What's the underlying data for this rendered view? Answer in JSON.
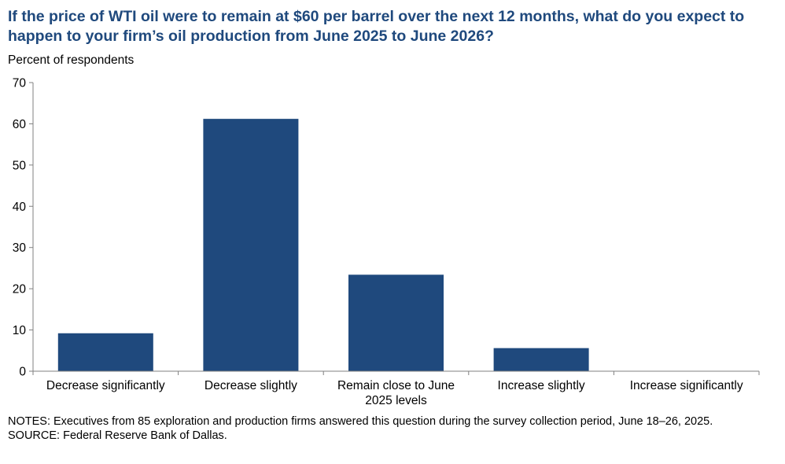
{
  "title": "If the price of WTI oil were to remain at $60 per barrel over the next 12 months, what do you expect to happen to your firm’s oil production from June 2025 to June 2026?",
  "notes": "NOTES:  Executives from 85 exploration and production firms answered this question during the survey collection period, June 18–26, 2025.",
  "source": "SOURCE:  Federal Reserve Bank of Dallas.",
  "colors": {
    "bar": "#1f497d",
    "title": "#1f497d",
    "axis": "#808080"
  },
  "chart_data": {
    "type": "bar",
    "ylabel": "Percent of respondents",
    "categories": [
      [
        "Decrease significantly"
      ],
      [
        "Decrease slightly"
      ],
      [
        "Remain close to June",
        "2025 levels"
      ],
      [
        "Increase slightly"
      ],
      [
        "Increase significantly"
      ]
    ],
    "values": [
      9.2,
      61.2,
      23.4,
      5.6,
      0
    ],
    "ylim": [
      0,
      70
    ],
    "yticks": [
      0,
      10,
      20,
      30,
      40,
      50,
      60,
      70
    ],
    "grid": false,
    "legend": "none"
  }
}
